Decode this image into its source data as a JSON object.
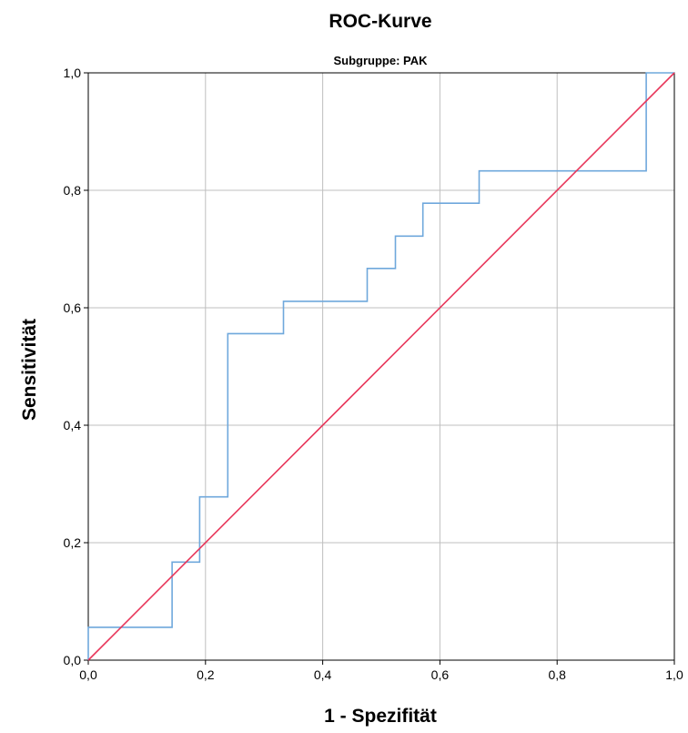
{
  "chart_data": {
    "type": "line",
    "title": "ROC-Kurve",
    "subtitle": "Subgruppe: PAK",
    "xlabel": "1 - Spezifität",
    "ylabel": "Sensitivität",
    "xlim": [
      0,
      1
    ],
    "ylim": [
      0,
      1
    ],
    "x_ticks": [
      0,
      0.2,
      0.4,
      0.6,
      0.8,
      1.0
    ],
    "y_ticks": [
      0,
      0.2,
      0.4,
      0.6,
      0.8,
      1.0
    ],
    "x_tick_labels": [
      "0,0",
      "0,2",
      "0,4",
      "0,6",
      "0,8",
      "1,0"
    ],
    "y_tick_labels": [
      "0,0",
      "0,2",
      "0,4",
      "0,6",
      "0,8",
      "1,0"
    ],
    "grid": true,
    "series": [
      {
        "color": "#6fa8dc",
        "step": true,
        "x": [
          0,
          0,
          0.143,
          0.143,
          0.19,
          0.19,
          0.238,
          0.238,
          0.333,
          0.333,
          0.476,
          0.476,
          0.524,
          0.524,
          0.571,
          0.571,
          0.667,
          0.667,
          0.952,
          0.952,
          1.0
        ],
        "y": [
          0,
          0.056,
          0.056,
          0.167,
          0.167,
          0.278,
          0.278,
          0.556,
          0.556,
          0.611,
          0.611,
          0.667,
          0.667,
          0.722,
          0.722,
          0.778,
          0.778,
          0.833,
          0.833,
          1.0,
          1.0
        ]
      },
      {
        "color": "#e8365a",
        "x": [
          0,
          1
        ],
        "y": [
          0,
          1
        ]
      }
    ]
  }
}
